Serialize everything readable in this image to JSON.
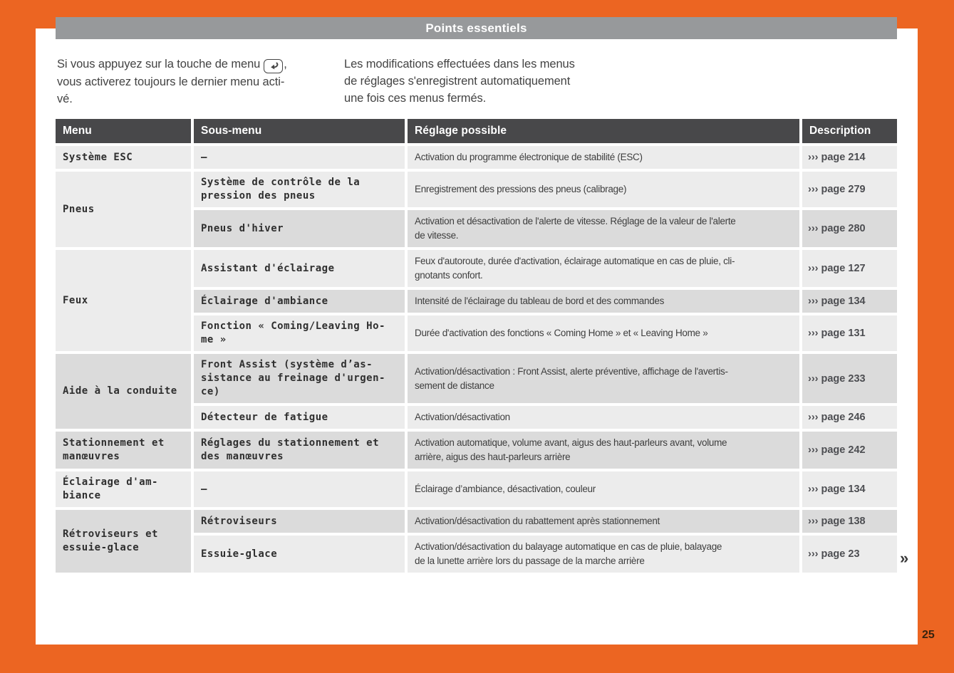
{
  "colors": {
    "orange": "#EC6522",
    "title_bar": "#97999B",
    "table_header": "#48484A",
    "row_light": "#ECECEC",
    "row_dark": "#DBDBDB"
  },
  "header": {
    "title": "Points essentiels"
  },
  "intro": {
    "left": {
      "l1a": "Si vous appuyez sur la touche de menu",
      "icon": "return-arrow",
      "l1b": ",",
      "l2": "vous activerez toujours le dernier menu acti-",
      "l3": "vé."
    },
    "right": {
      "l1": "Les modifications effectuées dans les menus",
      "l2": "de réglages s'enregistrent automatiquement",
      "l3": "une fois ces menus fermés."
    }
  },
  "table": {
    "columns": [
      "Menu",
      "Sous-menu",
      "Réglage possible",
      "Description"
    ],
    "groups": [
      {
        "menu_lines": [
          "Système ESC"
        ],
        "shade": "light",
        "rows": [
          {
            "shade": "light",
            "submenu_lines": [
              "–"
            ],
            "reglage_lines": [
              "Activation du programme électronique de stabilité (ESC)"
            ],
            "page": "››› page 214"
          }
        ]
      },
      {
        "menu_lines": [
          "Pneus"
        ],
        "shade": "light",
        "rows": [
          {
            "shade": "light",
            "submenu_lines": [
              "Système de contrôle de la",
              "pression des pneus"
            ],
            "reglage_lines": [
              "Enregistrement des pressions des pneus (calibrage)"
            ],
            "page": "››› page 279"
          },
          {
            "shade": "dark",
            "submenu_lines": [
              "Pneus d'hiver"
            ],
            "reglage_lines": [
              "Activation et désactivation de l'alerte de vitesse. Réglage de la valeur de l'alerte",
              "de vitesse."
            ],
            "page": "››› page 280"
          }
        ]
      },
      {
        "menu_lines": [
          "Feux"
        ],
        "shade": "light",
        "rows": [
          {
            "shade": "light",
            "submenu_lines": [
              "Assistant d'éclairage"
            ],
            "reglage_lines": [
              "Feux d'autoroute, durée d'activation, éclairage automatique en cas de pluie, cli-",
              "gnotants confort."
            ],
            "page": "››› page 127"
          },
          {
            "shade": "dark",
            "submenu_lines": [
              "Éclairage d'ambiance"
            ],
            "reglage_lines": [
              "Intensité de l'éclairage du tableau de bord et des commandes"
            ],
            "page": "››› page 134"
          },
          {
            "shade": "light",
            "submenu_lines": [
              "Fonction « Coming/Leaving Ho-",
              "me »"
            ],
            "reglage_lines": [
              "Durée d'activation des fonctions « Coming Home » et « Leaving Home »"
            ],
            "page": "››› page 131"
          }
        ]
      },
      {
        "menu_lines": [
          "Aide à la conduite"
        ],
        "shade": "dark",
        "rows": [
          {
            "shade": "dark",
            "submenu_lines": [
              "Front Assist (système d’as-",
              "sistance au freinage d'urgen-",
              "ce)"
            ],
            "reglage_lines": [
              "Activation/désactivation : Front Assist, alerte préventive, affichage de l'avertis-",
              "sement de distance"
            ],
            "page": "››› page 233"
          },
          {
            "shade": "light",
            "submenu_lines": [
              "Détecteur de fatigue"
            ],
            "reglage_lines": [
              "Activation/désactivation"
            ],
            "page": "››› page 246"
          }
        ]
      },
      {
        "menu_lines": [
          "Stationnement et",
          "manœuvres"
        ],
        "shade": "dark",
        "rows": [
          {
            "shade": "dark",
            "submenu_lines": [
              "Réglages du stationnement et",
              "des manœuvres"
            ],
            "reglage_lines": [
              "Activation automatique, volume avant, aigus des haut-parleurs avant, volume",
              "arrière, aigus des haut-parleurs arrière"
            ],
            "page": "››› page 242"
          }
        ]
      },
      {
        "menu_lines": [
          "Éclairage d'am-",
          "biance"
        ],
        "shade": "light",
        "rows": [
          {
            "shade": "light",
            "submenu_lines": [
              "–"
            ],
            "reglage_lines": [
              "Éclairage d’ambiance, désactivation, couleur"
            ],
            "page": "››› page 134"
          }
        ]
      },
      {
        "menu_lines": [
          "Rétroviseurs et",
          "essuie-glace"
        ],
        "shade": "dark",
        "rows": [
          {
            "shade": "dark",
            "submenu_lines": [
              "Rétroviseurs"
            ],
            "reglage_lines": [
              "Activation/désactivation du rabattement après stationnement"
            ],
            "page": "››› page 138"
          },
          {
            "shade": "light",
            "submenu_lines": [
              "Essuie-glace"
            ],
            "reglage_lines": [
              "Activation/désactivation du balayage automatique en cas de pluie, balayage",
              "de la lunette arrière lors du passage de la marche arrière"
            ],
            "page": "››› page 23"
          }
        ]
      }
    ]
  },
  "footer": {
    "continuation_mark": "»",
    "page_number": "25"
  }
}
